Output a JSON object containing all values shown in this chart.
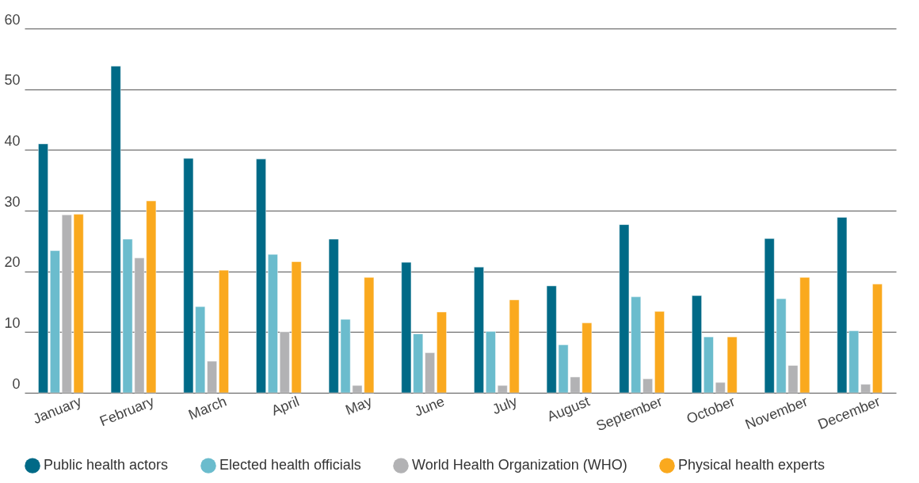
{
  "chart_data": {
    "type": "bar",
    "categories": [
      "January",
      "February",
      "March",
      "April",
      "May",
      "June",
      "July",
      "August",
      "September",
      "October",
      "November",
      "December"
    ],
    "series": [
      {
        "name": "Public health actors",
        "color": "#006a87",
        "values": [
          41.0,
          53.8,
          38.6,
          38.5,
          25.3,
          21.5,
          20.7,
          17.6,
          27.7,
          16.0,
          25.4,
          28.9
        ]
      },
      {
        "name": "Elected health officials",
        "color": "#6bbccd",
        "values": [
          23.4,
          25.3,
          14.2,
          22.8,
          12.1,
          9.7,
          10.1,
          7.9,
          15.8,
          9.2,
          15.5,
          10.2
        ]
      },
      {
        "name": "World Health Organization (WHO)",
        "color": "#b2b2b4",
        "values": [
          29.3,
          22.2,
          5.2,
          10.0,
          1.2,
          6.6,
          1.2,
          2.6,
          2.3,
          1.7,
          4.5,
          1.4
        ]
      },
      {
        "name": "Physical health experts",
        "color": "#faa91e",
        "values": [
          29.4,
          31.6,
          20.2,
          21.6,
          19.0,
          13.3,
          15.3,
          11.5,
          13.4,
          9.2,
          19.0,
          17.9
        ]
      }
    ],
    "ylim": [
      0,
      60
    ],
    "yticks": [
      0,
      10,
      20,
      30,
      40,
      50,
      60
    ],
    "grid": "y",
    "legend": "bottom"
  }
}
